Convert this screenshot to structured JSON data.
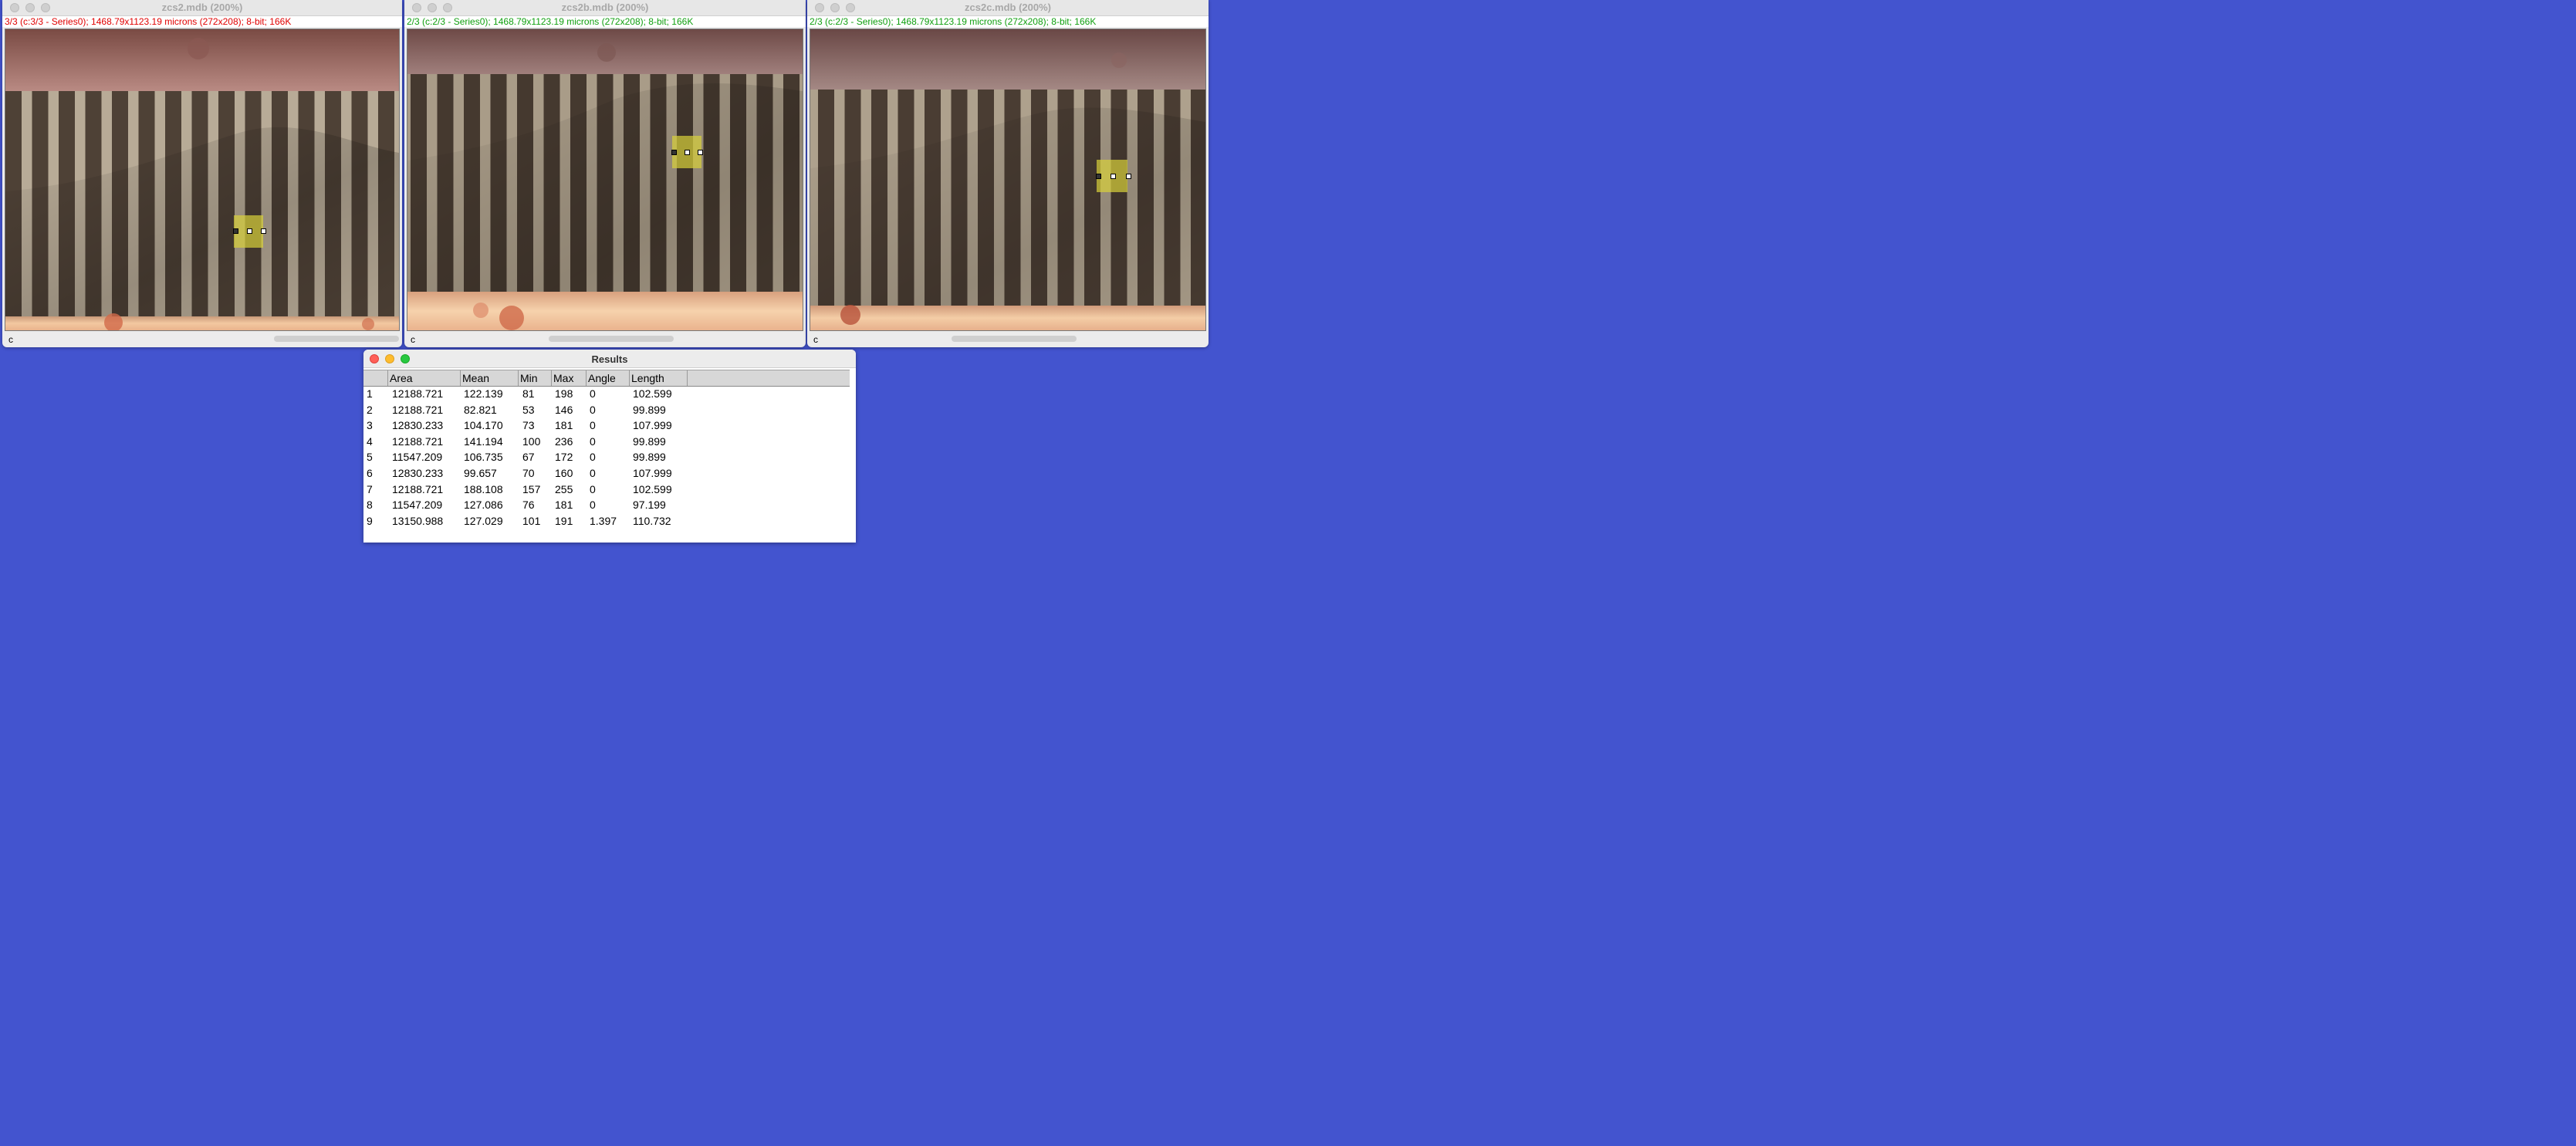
{
  "windows": [
    {
      "title": "zcs2.mdb (200%)",
      "info": "3/3 (c:3/3 - Series0); 1468.79x1123.19 microns (272x208); 8-bit; 166K",
      "info_color": "red",
      "channel": "c"
    },
    {
      "title": "zcs2b.mdb (200%)",
      "info": "2/3 (c:2/3 - Series0); 1468.79x1123.19 microns (272x208); 8-bit; 166K",
      "info_color": "green",
      "channel": "c"
    },
    {
      "title": "zcs2c.mdb (200%)",
      "info": "2/3 (c:2/3 - Series0); 1468.79x1123.19 microns (272x208); 8-bit; 166K",
      "info_color": "green",
      "channel": "c"
    }
  ],
  "results": {
    "title": "Results",
    "columns": [
      "",
      "Area",
      "Mean",
      "Min",
      "Max",
      "Angle",
      "Length"
    ],
    "rows": [
      [
        "1",
        "12188.721",
        "122.139",
        "81",
        "198",
        "0",
        "102.599"
      ],
      [
        "2",
        "12188.721",
        "82.821",
        "53",
        "146",
        "0",
        "99.899"
      ],
      [
        "3",
        "12830.233",
        "104.170",
        "73",
        "181",
        "0",
        "107.999"
      ],
      [
        "4",
        "12188.721",
        "141.194",
        "100",
        "236",
        "0",
        "99.899"
      ],
      [
        "5",
        "11547.209",
        "106.735",
        "67",
        "172",
        "0",
        "99.899"
      ],
      [
        "6",
        "12830.233",
        "99.657",
        "70",
        "160",
        "0",
        "107.999"
      ],
      [
        "7",
        "12188.721",
        "188.108",
        "157",
        "255",
        "0",
        "102.599"
      ],
      [
        "8",
        "11547.209",
        "127.086",
        "76",
        "181",
        "0",
        "97.199"
      ],
      [
        "9",
        "13150.988",
        "127.029",
        "101",
        "191",
        "1.397",
        "110.732"
      ]
    ]
  },
  "colors": {
    "desktop": "#4354cf",
    "info_red": "#e00000",
    "info_green": "#10a010",
    "roi_fill": "#d8d23a"
  },
  "icons": [
    "close-light",
    "minimize-light",
    "zoom-light",
    "roi-handle"
  ]
}
